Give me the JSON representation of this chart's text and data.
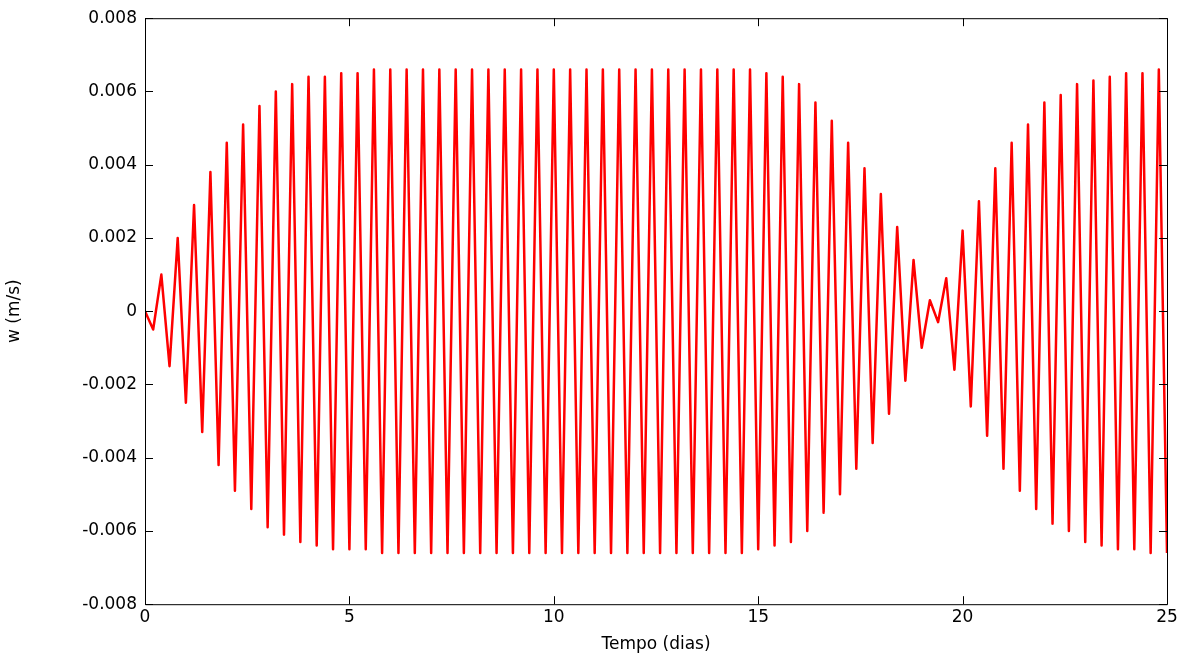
{
  "chart_data": {
    "type": "line",
    "xlabel": "Tempo (dias)",
    "ylabel": "w (m/s)",
    "xlim": [
      0,
      25
    ],
    "xticks": [
      0,
      5,
      10,
      15,
      20,
      25
    ],
    "ylim": [
      -0.008,
      0.008
    ],
    "yticks": [
      -0.008,
      -0.006,
      -0.004,
      -0.002,
      0,
      0.002,
      0.004,
      0.006,
      0.008
    ],
    "grid": false,
    "legend": false,
    "marker": "none",
    "line_style": "solid",
    "x": [
      0,
      0.2,
      0.4,
      0.6,
      0.8,
      1,
      1.2,
      1.4,
      1.6,
      1.8,
      2,
      2.2,
      2.4,
      2.6,
      2.8,
      3,
      3.2,
      3.4,
      3.6,
      3.8,
      4,
      4.2,
      4.4,
      4.6,
      4.8,
      5,
      5.2,
      5.4,
      5.6,
      5.8,
      6,
      6.2,
      6.4,
      6.6,
      6.8,
      7,
      7.2,
      7.4,
      7.6,
      7.8,
      8,
      8.2,
      8.4,
      8.6,
      8.8,
      9,
      9.2,
      9.4,
      9.6,
      9.8,
      10,
      10.2,
      10.4,
      10.6,
      10.8,
      11,
      11.2,
      11.4,
      11.6,
      11.8,
      12,
      12.2,
      12.4,
      12.6,
      12.8,
      13,
      13.2,
      13.4,
      13.6,
      13.8,
      14,
      14.2,
      14.4,
      14.6,
      14.8,
      15,
      15.2,
      15.4,
      15.6,
      15.8,
      16,
      16.2,
      16.4,
      16.6,
      16.8,
      17,
      17.2,
      17.4,
      17.6,
      17.8,
      18,
      18.2,
      18.4,
      18.6,
      18.8,
      19,
      19.2,
      19.4,
      19.6,
      19.8,
      20,
      20.2,
      20.4,
      20.6,
      20.8,
      21,
      21.2,
      21.4,
      21.6,
      21.8,
      22,
      22.2,
      22.4,
      22.6,
      22.8,
      23,
      23.2,
      23.4,
      23.6,
      23.8,
      24,
      24.2,
      24.4,
      24.6,
      24.8,
      25
    ],
    "series": [
      {
        "color": "#ff0000",
        "values": [
          0,
          -0.0005,
          0.001,
          -0.0015,
          0.002,
          -0.0025,
          0.0029,
          -0.0033,
          0.0038,
          -0.0042,
          0.0046,
          -0.0049,
          0.0051,
          -0.0054,
          0.0056,
          -0.0059,
          0.006,
          -0.0061,
          0.0062,
          -0.0063,
          0.0064,
          -0.0064,
          0.0064,
          -0.0065,
          0.0065,
          -0.0065,
          0.0065,
          -0.0065,
          0.0066,
          -0.0066,
          0.0066,
          -0.0066,
          0.0066,
          -0.0066,
          0.0066,
          -0.0066,
          0.0066,
          -0.0066,
          0.0066,
          -0.0066,
          0.0066,
          -0.0066,
          0.0066,
          -0.0066,
          0.0066,
          -0.0066,
          0.0066,
          -0.0066,
          0.0066,
          -0.0066,
          0.0066,
          -0.0066,
          0.0066,
          -0.0066,
          0.0066,
          -0.0066,
          0.0066,
          -0.0066,
          0.0066,
          -0.0066,
          0.0066,
          -0.0066,
          0.0066,
          -0.0066,
          0.0066,
          -0.0066,
          0.0066,
          -0.0066,
          0.0066,
          -0.0066,
          0.0066,
          -0.0066,
          0.0066,
          -0.0066,
          0.0066,
          -0.0065,
          0.0065,
          -0.0064,
          0.0064,
          -0.0063,
          0.0062,
          -0.006,
          0.0057,
          -0.0055,
          0.0052,
          -0.005,
          0.0046,
          -0.0043,
          0.0039,
          -0.0036,
          0.0032,
          -0.0028,
          0.0023,
          -0.0019,
          0.0014,
          -0.001,
          0.0003,
          -0.0003,
          0.0009,
          -0.0016,
          0.0022,
          -0.0026,
          0.003,
          -0.0034,
          0.0039,
          -0.0043,
          0.0046,
          -0.0049,
          0.0051,
          -0.0054,
          0.0057,
          -0.0058,
          0.0059,
          -0.006,
          0.0062,
          -0.0063,
          0.0063,
          -0.0064,
          0.0064,
          -0.0065,
          0.0065,
          -0.0065,
          0.0065,
          -0.0066,
          0.0066,
          -0.0066
        ]
      }
    ]
  }
}
